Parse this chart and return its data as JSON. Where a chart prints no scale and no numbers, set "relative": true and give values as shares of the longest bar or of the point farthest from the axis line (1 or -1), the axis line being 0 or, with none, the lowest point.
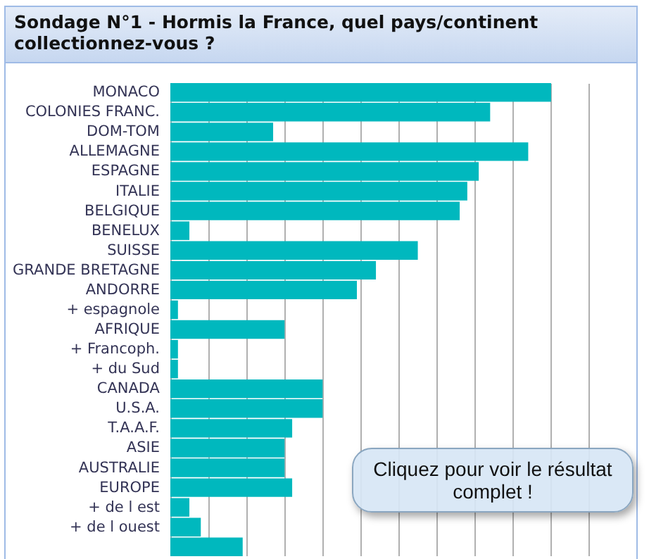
{
  "chart_data": {
    "type": "bar",
    "orientation": "horizontal",
    "relative": true,
    "title": "Sondage N°1 - Hormis la France, quel pays/continent collectionnez-vous ?",
    "categories": [
      "MONACO",
      "COLONIES FRANC.",
      "DOM-TOM",
      "ALLEMAGNE",
      "ESPAGNE",
      "ITALIE",
      "BELGIQUE",
      "BENELUX",
      "SUISSE",
      "GRANDE BRETAGNE",
      "ANDORRE",
      "+ espagnole",
      "AFRIQUE",
      "+ Francoph.",
      "+ du Sud",
      "CANADA",
      "U.S.A.",
      "T.A.A.F.",
      "ASIE",
      "AUSTRALIE",
      "EUROPE",
      "+ de l est",
      "+ de l ouest",
      null
    ],
    "values": [
      1,
      0.84,
      0.27,
      0.94,
      0.81,
      0.78,
      0.76,
      0.05,
      0.65,
      0.54,
      0.49,
      0.02,
      0.3,
      0.02,
      0.02,
      0.4,
      0.4,
      0.32,
      0.3,
      0.3,
      0.32,
      0.05,
      0.08,
      0.19
    ],
    "color": "#00b8be",
    "grid": "x",
    "annotations": [
      "Cliquez pour voir le résultat complet !"
    ]
  }
}
